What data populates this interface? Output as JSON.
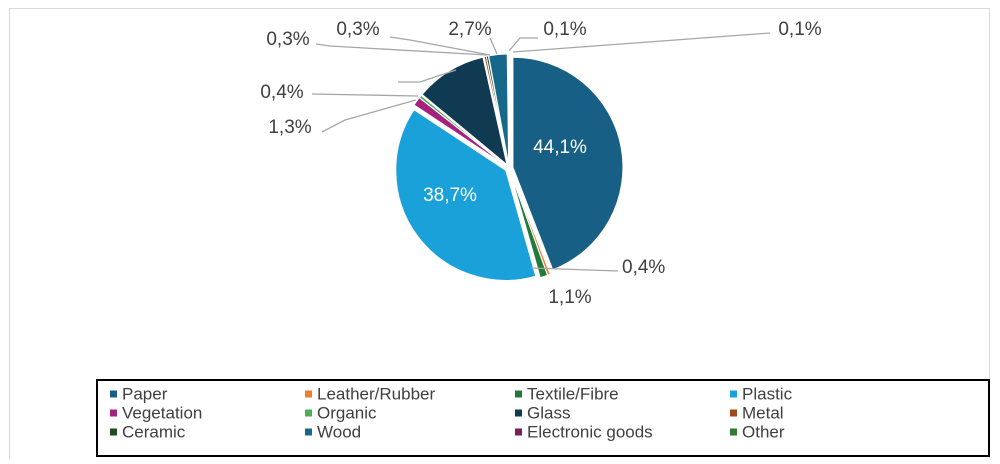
{
  "chart_data": {
    "type": "pie",
    "categories": [
      "Paper",
      "Leather/Rubber",
      "Textile/Fibre",
      "Plastic",
      "Vegetation",
      "Organic",
      "Glass",
      "Metal",
      "Ceramic",
      "Wood",
      "Electronic goods",
      "Other"
    ],
    "values": [
      44.1,
      0.4,
      1.1,
      38.7,
      1.3,
      0.4,
      10.5,
      0.3,
      0.3,
      2.7,
      0.1,
      0.1
    ],
    "value_labels": [
      "44,1%",
      "0,4%",
      "1,1%",
      "38,7%",
      "1,3%",
      "0,4%",
      null,
      "0,3%",
      "0,3%",
      "2,7%",
      "0,1%",
      "0,1%"
    ],
    "colors": [
      "#185f86",
      "#ed7d31",
      "#217a3c",
      "#1ba1d9",
      "#a3227e",
      "#4cae4f",
      "#0f3a52",
      "#9e4a1c",
      "#1e4d20",
      "#17678a",
      "#7a1d5c",
      "#2f7a30"
    ],
    "legend": "bottom"
  }
}
